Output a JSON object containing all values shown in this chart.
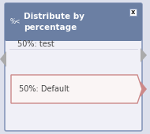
{
  "fig_width": 1.9,
  "fig_height": 1.7,
  "dpi": 100,
  "bg_color": "#dde0ec",
  "header_color": "#6b7fa3",
  "header_text": "Distribute by\npercentage",
  "header_text_color": "#ffffff",
  "header_font_size": 7.5,
  "body_bg": "#f0f0f7",
  "border_color": "#8899bb",
  "close_box_color": "#ffffff",
  "close_x_color": "#222222",
  "icon_text": "%≤",
  "icon_color": "#ffffff",
  "row1_label": "50%: test",
  "row2_label": "50%: Default",
  "row_font_size": 7.0,
  "row_text_color": "#444444",
  "row2_border_color": "#cc8888",
  "row2_fill_color": "#faf5f5",
  "left_arrow_color": "#aaaaaa",
  "right_arrow1_color": "#aaaaaa",
  "right_arrow2_color": "#cc8888"
}
